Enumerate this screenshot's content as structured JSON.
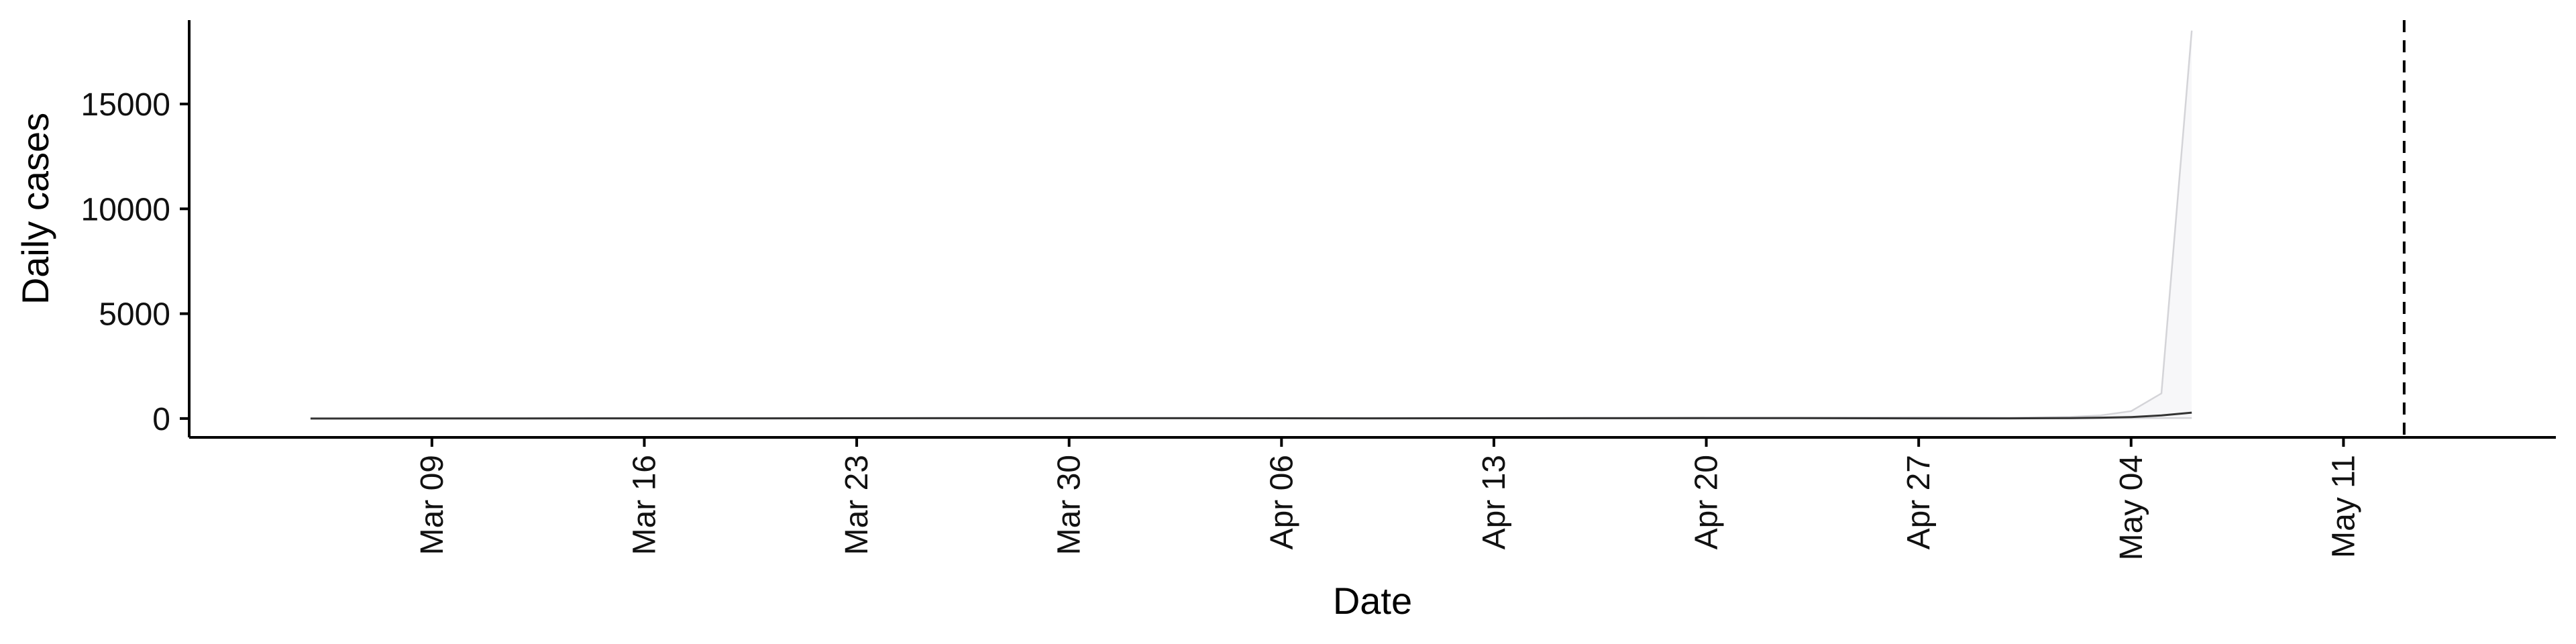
{
  "chart_data": {
    "type": "line",
    "xlabel": "Date",
    "ylabel": "Daily cases",
    "x_tick_labels": [
      "Mar 09",
      "Mar 16",
      "Mar 23",
      "Mar 30",
      "Apr 06",
      "Apr 13",
      "Apr 20",
      "Apr 27",
      "May 04",
      "May 11"
    ],
    "x_tick_dates": [
      "2020-03-09",
      "2020-03-16",
      "2020-03-23",
      "2020-03-30",
      "2020-04-06",
      "2020-04-13",
      "2020-04-20",
      "2020-04-27",
      "2020-05-04",
      "2020-05-11"
    ],
    "y_ticks": [
      0,
      5000,
      10000,
      15000
    ],
    "xlim": [
      "2020-03-01",
      "2020-05-18"
    ],
    "ylim": [
      -900,
      19000
    ],
    "vline_date": "2020-05-13",
    "series": [
      {
        "role": "median",
        "dates": [
          "2020-03-05",
          "2020-03-12",
          "2020-03-19",
          "2020-03-26",
          "2020-04-02",
          "2020-04-09",
          "2020-04-16",
          "2020-04-23",
          "2020-04-27",
          "2020-04-30",
          "2020-05-02",
          "2020-05-03",
          "2020-05-04",
          "2020-05-05",
          "2020-05-06"
        ],
        "values": [
          0,
          5,
          10,
          15,
          15,
          10,
          15,
          20,
          10,
          10,
          20,
          40,
          70,
          150,
          280
        ]
      },
      {
        "role": "upper",
        "dates": [
          "2020-03-05",
          "2020-03-12",
          "2020-03-19",
          "2020-03-26",
          "2020-04-02",
          "2020-04-09",
          "2020-04-16",
          "2020-04-23",
          "2020-04-27",
          "2020-04-30",
          "2020-05-02",
          "2020-05-03",
          "2020-05-04",
          "2020-05-05",
          "2020-05-06"
        ],
        "values": [
          0,
          10,
          20,
          30,
          30,
          25,
          35,
          40,
          60,
          40,
          80,
          150,
          350,
          1200,
          18500
        ]
      },
      {
        "role": "lower",
        "dates": [
          "2020-03-05",
          "2020-03-12",
          "2020-03-19",
          "2020-03-26",
          "2020-04-02",
          "2020-04-09",
          "2020-04-16",
          "2020-04-23",
          "2020-04-27",
          "2020-04-30",
          "2020-05-02",
          "2020-05-03",
          "2020-05-04",
          "2020-05-05",
          "2020-05-06"
        ],
        "values": [
          0,
          0,
          0,
          5,
          5,
          0,
          5,
          5,
          0,
          0,
          5,
          10,
          15,
          20,
          25
        ]
      }
    ],
    "grid": false,
    "legend": "none"
  }
}
